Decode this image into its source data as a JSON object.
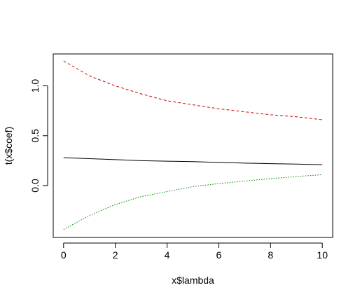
{
  "chart_data": {
    "type": "line",
    "title": "",
    "xlabel": "x$lambda",
    "ylabel": "t(x$coef)",
    "xlim": [
      -0.4,
      10.4
    ],
    "ylim": [
      -0.52,
      1.32
    ],
    "x_ticks": [
      0,
      2,
      4,
      6,
      8,
      10
    ],
    "x_tick_labels": [
      "0",
      "2",
      "4",
      "6",
      "8",
      "10"
    ],
    "y_ticks": [
      0.0,
      0.5,
      1.0
    ],
    "y_tick_labels": [
      "0.0",
      "0.5",
      "1.0"
    ],
    "grid": false,
    "legend": "none",
    "x": [
      0,
      1,
      2,
      3,
      4,
      5,
      6,
      7,
      8,
      9,
      10
    ],
    "series": [
      {
        "color": "#000000",
        "dash": "solid",
        "values": [
          0.28,
          0.27,
          0.26,
          0.25,
          0.245,
          0.24,
          0.232,
          0.225,
          0.22,
          0.215,
          0.21
        ]
      },
      {
        "color": "#cc0000",
        "dash": "dashed",
        "values": [
          1.25,
          1.1,
          1.0,
          0.92,
          0.85,
          0.81,
          0.77,
          0.74,
          0.71,
          0.69,
          0.66
        ]
      },
      {
        "color": "#008800",
        "dash": "dotted",
        "values": [
          -0.44,
          -0.3,
          -0.19,
          -0.11,
          -0.06,
          -0.01,
          0.02,
          0.045,
          0.07,
          0.09,
          0.11
        ]
      }
    ]
  }
}
